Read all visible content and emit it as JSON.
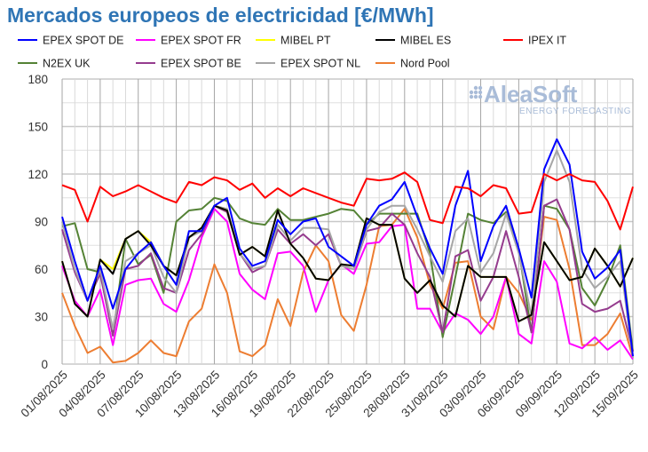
{
  "chart_data": {
    "type": "line",
    "title": "Mercados europeos de electricidad [€/MWh]",
    "xlabel": "",
    "ylabel": "",
    "ylim": [
      0,
      180
    ],
    "yticks": [
      0,
      30,
      60,
      90,
      120,
      150,
      180
    ],
    "grid": true,
    "legend_placement": "top",
    "x_start": "01/08/2025",
    "x_end": "15/09/2025",
    "xtick_labels": [
      "01/08/2025",
      "04/08/2025",
      "07/08/2025",
      "10/08/2025",
      "13/08/2025",
      "16/08/2025",
      "19/08/2025",
      "22/08/2025",
      "25/08/2025",
      "28/08/2025",
      "31/08/2025",
      "03/09/2025",
      "06/09/2025",
      "09/09/2025",
      "12/09/2025",
      "15/09/2025"
    ],
    "watermark": {
      "brand": "AleaSoft",
      "tagline": "ENERGY FORECASTING"
    },
    "series": [
      {
        "name": "EPEX SPOT DE",
        "color": "#0000FF",
        "values": [
          93,
          65,
          40,
          62,
          35,
          60,
          70,
          77,
          62,
          50,
          84,
          84,
          100,
          105,
          73,
          62,
          65,
          91,
          82,
          90,
          92,
          74,
          68,
          62,
          88,
          100,
          104,
          115,
          93,
          73,
          57,
          100,
          122,
          65,
          87,
          100,
          73,
          42,
          123,
          142,
          126,
          71,
          54,
          61,
          72,
          5
        ]
      },
      {
        "name": "EPEX SPOT FR",
        "color": "#FF00FF",
        "values": [
          62,
          40,
          30,
          47,
          12,
          50,
          53,
          54,
          38,
          33,
          53,
          80,
          98,
          90,
          57,
          47,
          41,
          70,
          71,
          62,
          33,
          53,
          63,
          57,
          76,
          77,
          87,
          88,
          35,
          35,
          20,
          32,
          28,
          19,
          30,
          55,
          19,
          13,
          65,
          52,
          13,
          10,
          17,
          9,
          15,
          3
        ]
      },
      {
        "name": "MIBEL PT",
        "color": "#FFFF00",
        "values": [
          65,
          38,
          30,
          66,
          60,
          79,
          84,
          77,
          62,
          56,
          80,
          86,
          100,
          97,
          69,
          74,
          68,
          97,
          76,
          67,
          54,
          53,
          63,
          62,
          92,
          88,
          88,
          54,
          45,
          53,
          37,
          30,
          62,
          55,
          55,
          55,
          27,
          31,
          77,
          65,
          53,
          55,
          73,
          62,
          49,
          67
        ]
      },
      {
        "name": "MIBEL ES",
        "color": "#000000",
        "values": [
          65,
          38,
          30,
          66,
          57,
          79,
          84,
          75,
          62,
          56,
          80,
          86,
          100,
          97,
          69,
          74,
          68,
          97,
          76,
          67,
          54,
          53,
          63,
          62,
          92,
          88,
          88,
          54,
          45,
          53,
          37,
          30,
          62,
          55,
          55,
          55,
          27,
          31,
          77,
          65,
          53,
          55,
          73,
          62,
          49,
          67
        ]
      },
      {
        "name": "IPEX IT",
        "color": "#FF0000",
        "values": [
          113,
          110,
          90,
          112,
          106,
          109,
          113,
          109,
          105,
          102,
          115,
          113,
          118,
          116,
          110,
          114,
          105,
          111,
          106,
          111,
          108,
          105,
          102,
          100,
          117,
          116,
          117,
          121,
          115,
          91,
          89,
          112,
          111,
          106,
          113,
          111,
          95,
          96,
          120,
          116,
          120,
          116,
          115,
          103,
          85,
          112
        ]
      },
      {
        "name": "N2EX UK",
        "color": "#548235",
        "values": [
          87,
          89,
          60,
          58,
          18,
          79,
          63,
          69,
          45,
          90,
          97,
          98,
          105,
          103,
          92,
          89,
          88,
          98,
          91,
          91,
          93,
          95,
          98,
          97,
          88,
          95,
          95,
          95,
          95,
          70,
          17,
          55,
          95,
          91,
          89,
          96,
          72,
          20,
          100,
          98,
          85,
          48,
          37,
          53,
          75,
          8
        ]
      },
      {
        "name": "EPEX SPOT BE",
        "color": "#953C8E",
        "values": [
          85,
          58,
          40,
          57,
          18,
          60,
          62,
          70,
          48,
          45,
          72,
          82,
          100,
          96,
          70,
          58,
          62,
          85,
          76,
          82,
          75,
          82,
          62,
          60,
          84,
          86,
          95,
          88,
          70,
          55,
          20,
          68,
          72,
          40,
          55,
          84,
          55,
          20,
          100,
          104,
          85,
          38,
          33,
          35,
          40,
          8
        ]
      },
      {
        "name": "EPEX SPOT NL",
        "color": "#A6A6A6",
        "values": [
          90,
          60,
          40,
          60,
          22,
          65,
          70,
          75,
          55,
          45,
          80,
          84,
          100,
          98,
          70,
          60,
          62,
          88,
          78,
          86,
          86,
          85,
          62,
          60,
          85,
          96,
          100,
          100,
          85,
          68,
          52,
          84,
          92,
          58,
          70,
          95,
          70,
          30,
          115,
          135,
          115,
          60,
          48,
          55,
          65,
          4
        ]
      },
      {
        "name": "Nord Pool",
        "color": "#ED7D31",
        "values": [
          45,
          24,
          7,
          11,
          1,
          2,
          7,
          15,
          7,
          5,
          27,
          35,
          63,
          45,
          8,
          5,
          12,
          41,
          24,
          58,
          75,
          65,
          31,
          21,
          50,
          87,
          88,
          98,
          80,
          50,
          35,
          64,
          65,
          30,
          22,
          55,
          45,
          28,
          93,
          91,
          60,
          12,
          12,
          19,
          32,
          4
        ]
      }
    ]
  }
}
